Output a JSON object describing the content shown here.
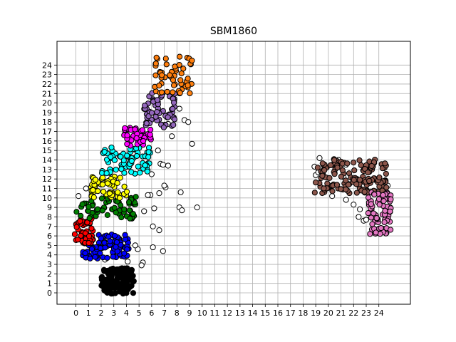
{
  "chart_data": {
    "type": "scatter",
    "title": "SBM1860",
    "xlabel": "",
    "ylabel": "",
    "xlim": [
      -1.5,
      26.5
    ],
    "ylim": [
      -1.2,
      26.5
    ],
    "x_ticks": [
      0,
      1,
      2,
      3,
      4,
      5,
      6,
      7,
      8,
      9,
      10,
      11,
      12,
      13,
      14,
      15,
      16,
      17,
      18,
      19,
      20,
      21,
      22,
      23,
      24
    ],
    "y_ticks": [
      0,
      1,
      2,
      3,
      4,
      5,
      6,
      7,
      8,
      9,
      10,
      11,
      12,
      13,
      14,
      15,
      16,
      17,
      18,
      19,
      20,
      21,
      22,
      23,
      24
    ],
    "grid": true,
    "legend": "none",
    "marker_edge_color": "#000000",
    "clusters": [
      {
        "color": "#000000",
        "x_range": [
          2.0,
          4.6
        ],
        "y_range": [
          -0.1,
          2.6
        ],
        "count": 140
      },
      {
        "color": "#0000ff",
        "x_range": [
          0.5,
          4.2
        ],
        "y_range": [
          3.6,
          6.2
        ],
        "count": 95
      },
      {
        "color": "#ff0000",
        "x_range": [
          -0.1,
          1.4
        ],
        "y_range": [
          5.2,
          7.8
        ],
        "count": 45
      },
      {
        "color": "#008000",
        "x_range": [
          0.0,
          4.8
        ],
        "y_range": [
          7.8,
          10.2
        ],
        "count": 70
      },
      {
        "color": "#ffff00",
        "x_range": [
          1.2,
          4.3
        ],
        "y_range": [
          10.0,
          12.4
        ],
        "count": 55
      },
      {
        "color": "#00ffff",
        "x_range": [
          2.0,
          5.9
        ],
        "y_range": [
          12.5,
          15.4
        ],
        "count": 75
      },
      {
        "color": "#ff00ff",
        "x_range": [
          3.8,
          6.1
        ],
        "y_range": [
          15.5,
          17.5
        ],
        "count": 45
      },
      {
        "color": "#9467bd",
        "x_range": [
          5.4,
          7.9
        ],
        "y_range": [
          17.4,
          21.2
        ],
        "count": 60
      },
      {
        "color": "#ff7f0e",
        "x_range": [
          6.2,
          9.4
        ],
        "y_range": [
          21.0,
          25.0
        ],
        "count": 55
      },
      {
        "color": "#8c564b",
        "x_range": [
          18.9,
          24.6
        ],
        "y_range": [
          10.5,
          14.1
        ],
        "count": 150
      },
      {
        "color": "#e377c2",
        "x_range": [
          23.1,
          25.0
        ],
        "y_range": [
          6.2,
          10.6
        ],
        "count": 70
      },
      {
        "color": "#ffffff",
        "x_range": [
          0.0,
          25.0
        ],
        "y_range": [
          0.0,
          25.0
        ],
        "count": 0
      }
    ],
    "outlier_points": [
      [
        9.6,
        9.0
      ],
      [
        9.2,
        15.7
      ],
      [
        8.3,
        10.6
      ],
      [
        8.2,
        9.0
      ],
      [
        8.4,
        8.7
      ],
      [
        7.1,
        11.1
      ],
      [
        7.0,
        11.3
      ],
      [
        7.6,
        16.5
      ],
      [
        7.3,
        13.4
      ],
      [
        6.7,
        13.6
      ],
      [
        6.9,
        4.4
      ],
      [
        6.6,
        6.6
      ],
      [
        6.1,
        7.0
      ],
      [
        6.1,
        4.8
      ],
      [
        6.2,
        8.9
      ],
      [
        5.9,
        10.3
      ],
      [
        5.7,
        10.3
      ],
      [
        5.4,
        8.6
      ],
      [
        4.9,
        4.6
      ],
      [
        4.7,
        5.0
      ],
      [
        4.2,
        1.5
      ],
      [
        4.1,
        3.3
      ],
      [
        5.3,
        3.2
      ],
      [
        5.2,
        2.9
      ],
      [
        0.2,
        10.2
      ],
      [
        0.8,
        11.0
      ],
      [
        2.3,
        3.5
      ],
      [
        6.6,
        10.5
      ],
      [
        6.0,
        12.5
      ],
      [
        6.5,
        15.0
      ],
      [
        6.9,
        13.5
      ],
      [
        7.3,
        17.8
      ],
      [
        8.2,
        19.4
      ],
      [
        8.6,
        18.2
      ],
      [
        8.9,
        18.0
      ],
      [
        19.0,
        12.4
      ],
      [
        19.2,
        12.7
      ],
      [
        19.7,
        11.0
      ],
      [
        20.3,
        10.2
      ],
      [
        21.4,
        9.8
      ],
      [
        22.0,
        9.3
      ],
      [
        22.5,
        8.8
      ],
      [
        22.8,
        7.6
      ],
      [
        23.0,
        7.7
      ],
      [
        18.9,
        13.3
      ],
      [
        19.3,
        14.2
      ],
      [
        19.8,
        13.2
      ],
      [
        20.8,
        14.0
      ],
      [
        21.4,
        13.5
      ],
      [
        22.3,
        11.4
      ],
      [
        23.5,
        10.6
      ],
      [
        24.2,
        10.2
      ],
      [
        24.7,
        11.3
      ],
      [
        24.9,
        9.0
      ],
      [
        24.6,
        6.3
      ],
      [
        22.4,
        8.0
      ],
      [
        21.2,
        12.2
      ],
      [
        20.5,
        12.6
      ]
    ]
  }
}
